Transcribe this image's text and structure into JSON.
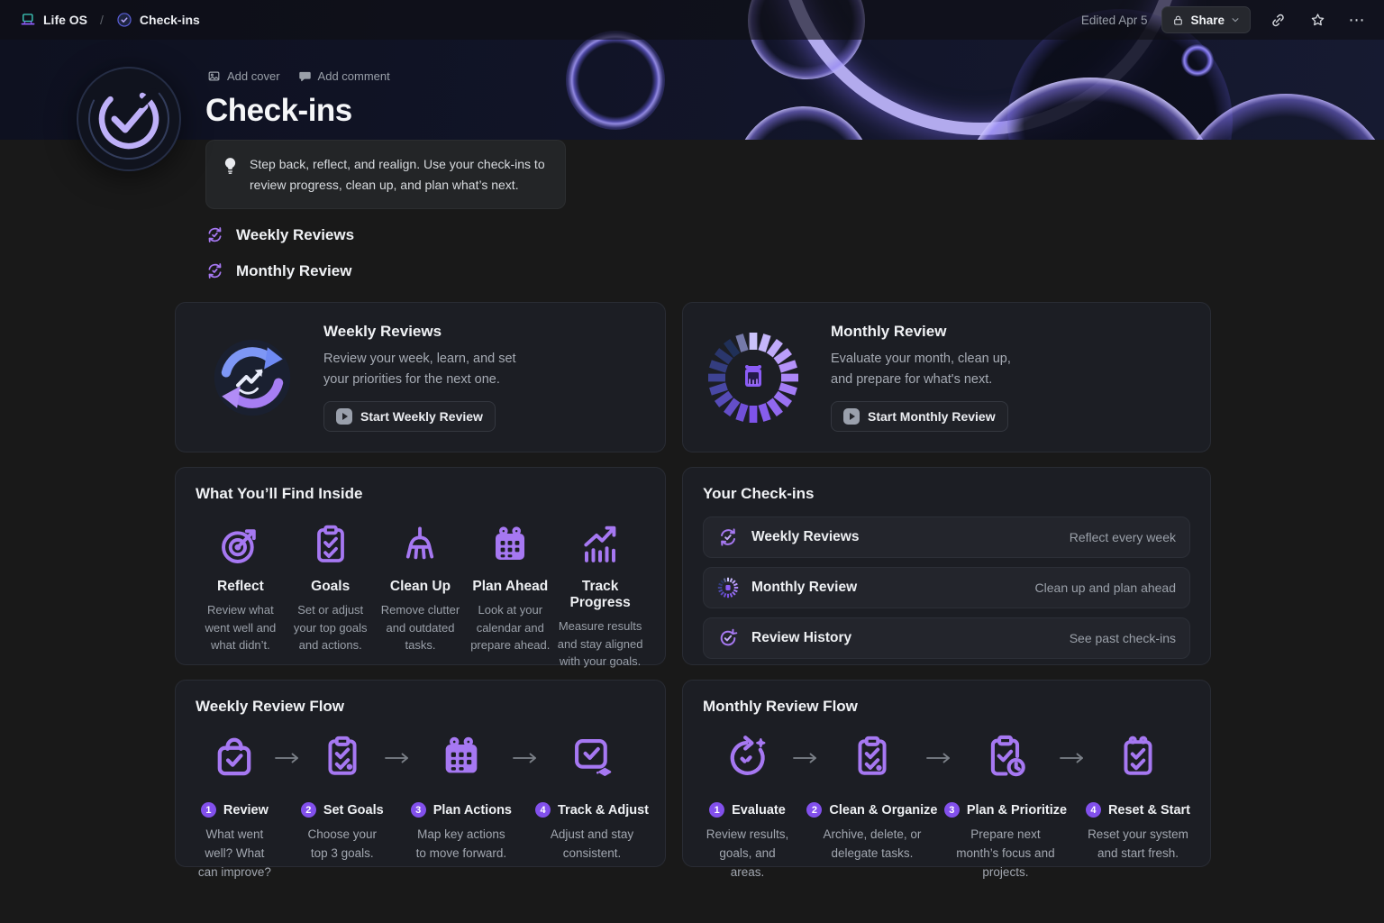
{
  "topbar": {
    "workspace": "Life OS",
    "separator": "/",
    "page": "Check-ins",
    "edited": "Edited Apr 5",
    "share_label": "Share",
    "more_label": "⋯"
  },
  "header": {
    "add_cover": "Add cover",
    "add_comment": "Add comment",
    "title": "Check-ins",
    "callout": "Step back, reflect, and realign. Use your check-ins to review progress, clean up, and plan what’s next."
  },
  "links": [
    {
      "label": "Weekly Reviews"
    },
    {
      "label": "Monthly Review"
    }
  ],
  "hero_cards": {
    "weekly": {
      "title": "Weekly Reviews",
      "description": "Review your week, learn, and set your priorities for the next one.",
      "button": "Start Weekly Review"
    },
    "monthly": {
      "title": "Monthly Review",
      "description": "Evaluate your month, clean up, and prepare for what's next.",
      "button": "Start Monthly Review"
    }
  },
  "find_inside": {
    "title": "What You’ll Find Inside",
    "items": [
      {
        "icon": "target-arrow-icon",
        "label": "Reflect",
        "description": "Review what went well and what didn’t."
      },
      {
        "icon": "clipboard-check-icon",
        "label": "Goals",
        "description": "Set or adjust your top goals and actions."
      },
      {
        "icon": "broom-icon",
        "label": "Clean Up",
        "description": "Remove clutter and outdated tasks."
      },
      {
        "icon": "calendar-icon",
        "label": "Plan Ahead",
        "description": "Look at your calendar and prepare ahead."
      },
      {
        "icon": "chart-up-icon",
        "label": "Track Progress",
        "description": "Measure results and stay aligned with your goals."
      }
    ]
  },
  "your_checkins": {
    "title": "Your Check-ins",
    "rows": [
      {
        "icon": "weekly-cycle-icon",
        "label": "Weekly Reviews",
        "note": "Reflect every week"
      },
      {
        "icon": "monthly-ring-icon",
        "label": "Monthly Review",
        "note": "Clean up and plan ahead"
      },
      {
        "icon": "history-check-icon",
        "label": "Review History",
        "note": "See past check-ins"
      }
    ]
  },
  "weekly_flow": {
    "title": "Weekly Review Flow",
    "steps": [
      {
        "num": "1",
        "icon": "bag-check-icon",
        "label": "Review",
        "description": "What went well? What can improve?"
      },
      {
        "num": "2",
        "icon": "clipboard-goals-icon",
        "label": "Set Goals",
        "description": "Choose your top 3 goals."
      },
      {
        "num": "3",
        "icon": "calendar-icon",
        "label": "Plan Actions",
        "description": "Map key actions to move forward."
      },
      {
        "num": "4",
        "icon": "tablet-check-icon",
        "label": "Track & Adjust",
        "description": "Adjust and stay consistent."
      }
    ]
  },
  "monthly_flow": {
    "title": "Monthly Review Flow",
    "steps": [
      {
        "num": "1",
        "icon": "timer-refresh-icon",
        "label": "Evaluate",
        "description": "Review results, goals, and areas."
      },
      {
        "num": "2",
        "icon": "clipboard-check-icon",
        "label": "Clean & Organize",
        "description": "Archive, delete, or delegate tasks."
      },
      {
        "num": "3",
        "icon": "clipboard-clock-icon",
        "label": "Plan & Prioritize",
        "description": "Prepare next month’s focus and projects."
      },
      {
        "num": "4",
        "icon": "clipboard-pins-icon",
        "label": "Reset & Start",
        "description": "Reset your system and start fresh."
      }
    ]
  },
  "colors": {
    "accent": "#a678f2",
    "accent_deep": "#8250ec",
    "card_bg": "#1c1e24",
    "page_bg": "#191919",
    "cover_navy": "#12152a",
    "ring_light": "#cbc3fb",
    "ring_dark": "#203058"
  }
}
